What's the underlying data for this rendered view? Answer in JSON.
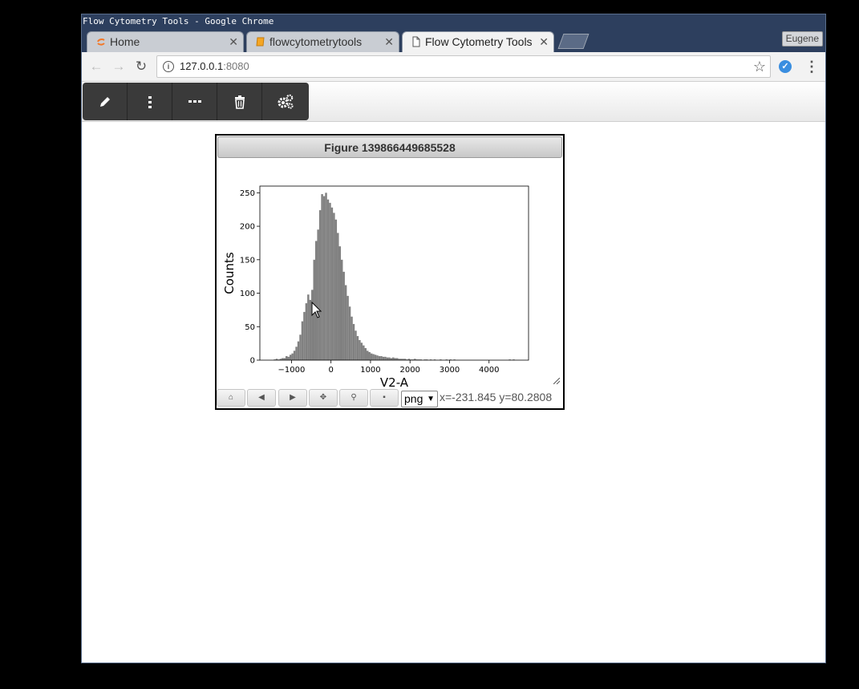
{
  "window": {
    "title": "Flow Cytometry Tools - Google Chrome"
  },
  "tabs": [
    {
      "label": "Home",
      "icon": "jupyter-logo-icon",
      "active": false
    },
    {
      "label": "flowcytometrytools",
      "icon": "notebook-icon",
      "active": false
    },
    {
      "label": "Flow Cytometry Tools",
      "icon": "page-icon",
      "active": true
    }
  ],
  "profile": {
    "name": "Eugene"
  },
  "address_bar": {
    "host": "127.0.0.1",
    "port": ":8080"
  },
  "app_toolbar": {
    "tools": [
      {
        "name": "edit-tool",
        "icon": "pencil-icon"
      },
      {
        "name": "vertical-tool",
        "icon": "vertical-dots-icon"
      },
      {
        "name": "horizontal-tool",
        "icon": "horizontal-dots-icon"
      },
      {
        "name": "delete-tool",
        "icon": "trash-icon"
      },
      {
        "name": "settings-tool",
        "icon": "gears-icon"
      }
    ]
  },
  "figure": {
    "title": "Figure 139866449685528",
    "format_value": "png",
    "coords_text": "x=-231.845 y=80.2808",
    "nav_buttons": [
      "home-icon",
      "back-icon",
      "forward-icon",
      "pan-icon",
      "zoom-icon",
      "save-icon"
    ]
  },
  "chart_data": {
    "type": "bar",
    "title": "",
    "xlabel": "V2-A",
    "ylabel": "Counts",
    "xlim": [
      -1800,
      5000
    ],
    "ylim": [
      0,
      260
    ],
    "xticks": [
      -1000,
      0,
      1000,
      2000,
      3000,
      4000
    ],
    "xtick_labels": [
      "−1000",
      "0",
      "1000",
      "2000",
      "3000",
      "4000"
    ],
    "yticks": [
      0,
      50,
      100,
      150,
      200,
      250
    ],
    "bar_color": "#808080",
    "x": [
      -1500,
      -1450,
      -1400,
      -1350,
      -1300,
      -1250,
      -1200,
      -1150,
      -1100,
      -1050,
      -1000,
      -950,
      -900,
      -850,
      -800,
      -750,
      -700,
      -650,
      -600,
      -550,
      -500,
      -450,
      -400,
      -350,
      -300,
      -250,
      -200,
      -150,
      -100,
      -50,
      0,
      50,
      100,
      150,
      200,
      250,
      300,
      350,
      400,
      450,
      500,
      550,
      600,
      650,
      700,
      750,
      800,
      850,
      900,
      950,
      1000,
      1050,
      1100,
      1150,
      1200,
      1250,
      1300,
      1350,
      1400,
      1450,
      1500,
      1550,
      1600,
      1650,
      1700,
      1750,
      1800,
      1850,
      1900,
      1950,
      2000,
      2050,
      2100,
      2150,
      2200,
      2250,
      2300,
      2350,
      2400,
      2450,
      2500,
      2550,
      2600,
      2650,
      2700,
      2750,
      2800,
      2850,
      2900,
      2950,
      3000,
      3050,
      3100,
      4500,
      4550,
      4600
    ],
    "values": [
      0,
      1,
      2,
      1,
      2,
      3,
      3,
      6,
      5,
      8,
      10,
      14,
      20,
      28,
      38,
      58,
      72,
      85,
      98,
      90,
      105,
      150,
      178,
      195,
      224,
      248,
      245,
      250,
      240,
      235,
      228,
      220,
      210,
      190,
      170,
      150,
      132,
      112,
      96,
      80,
      65,
      54,
      44,
      36,
      30,
      26,
      22,
      18,
      14,
      12,
      10,
      9,
      8,
      7,
      6,
      6,
      5,
      5,
      4,
      4,
      3,
      4,
      3,
      3,
      2,
      2,
      2,
      2,
      1,
      2,
      1,
      1,
      2,
      1,
      1,
      1,
      0,
      1,
      1,
      0,
      1,
      0,
      1,
      0,
      0,
      1,
      0,
      0,
      1,
      0,
      1,
      0,
      1,
      1,
      0,
      1
    ]
  }
}
